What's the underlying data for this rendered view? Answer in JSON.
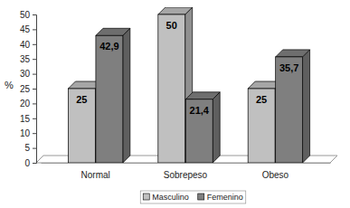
{
  "chart_data": {
    "type": "bar",
    "categories": [
      "Normal",
      "Sobrepeso",
      "Obeso"
    ],
    "series": [
      {
        "name": "Masculino",
        "color": "#c0c0c0",
        "values": [
          25,
          50,
          25
        ]
      },
      {
        "name": "Femenino",
        "color": "#7f7f7f",
        "values": [
          42.9,
          21.4,
          35.7
        ],
        "value_labels": [
          "42,9",
          "21,4",
          "35,7"
        ]
      }
    ],
    "y_label": "%",
    "ylim": [
      0,
      50
    ],
    "yticks": [
      0,
      5,
      10,
      15,
      20,
      25,
      30,
      35,
      40,
      45,
      50
    ],
    "grid": false,
    "data_labels": true,
    "legend": "bottom"
  }
}
